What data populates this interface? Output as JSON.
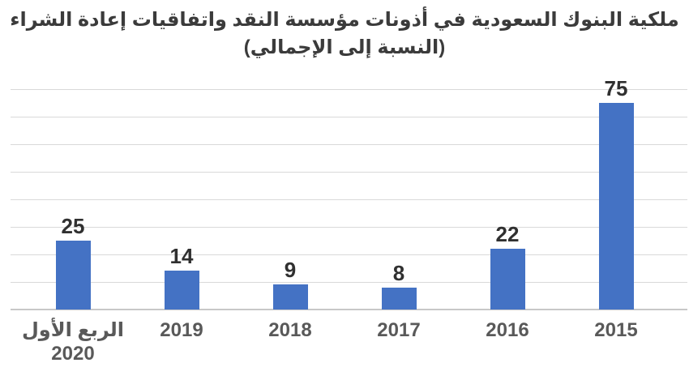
{
  "chart_data": {
    "type": "bar",
    "title_line1": "ملكية البنوك السعودية في أذونات مؤسسة النقد واتفاقيات إعادة الشراء",
    "title_line2": "(النسبة إلى الإجمالي)",
    "categories": [
      {
        "key": "q1-2020",
        "lines": [
          "الربع الأول",
          "2020"
        ]
      },
      {
        "key": "2019",
        "lines": [
          "2019"
        ]
      },
      {
        "key": "2018",
        "lines": [
          "2018"
        ]
      },
      {
        "key": "2017",
        "lines": [
          "2017"
        ]
      },
      {
        "key": "2016",
        "lines": [
          "2016"
        ]
      },
      {
        "key": "2015",
        "lines": [
          "2015"
        ]
      }
    ],
    "values": [
      25,
      14,
      9,
      8,
      22,
      75
    ],
    "data_labels": [
      25,
      14,
      9,
      8,
      22,
      75
    ],
    "xlabel": "",
    "ylabel": "",
    "ylim": [
      0,
      80
    ],
    "gridline_step": 10,
    "grid": true,
    "y_tick_labels_shown": false,
    "legend": "none",
    "category_order_note": "displayed left to right, most recent quarter first",
    "colors": {
      "background": "#FFFFFF",
      "bar": "#4472C4",
      "gridline": "#D9D9D9",
      "axis_line": "#C8C8C8",
      "title_text": "#3B3B3B",
      "data_label_text": "#303030",
      "axis_label_text": "#595959"
    }
  }
}
